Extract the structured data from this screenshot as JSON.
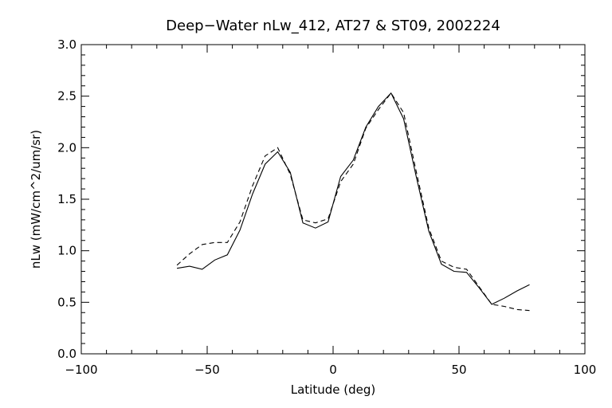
{
  "chart_data": {
    "type": "line",
    "title": "Deep−Water nLw_412, AT27 & ST09, 2002224",
    "xlabel": "Latitude (deg)",
    "ylabel": "nLw (mW/cm^2/um/sr)",
    "xlim": [
      -100,
      100
    ],
    "ylim": [
      0.0,
      3.0
    ],
    "xticks": [
      -100,
      -50,
      0,
      50,
      100
    ],
    "xtick_labels": [
      "−100",
      "−50",
      "0",
      "50",
      "100"
    ],
    "yticks": [
      0.0,
      0.5,
      1.0,
      1.5,
      2.0,
      2.5,
      3.0
    ],
    "ytick_labels": [
      "0.0",
      "0.5",
      "1.0",
      "1.5",
      "2.0",
      "2.5",
      "3.0"
    ],
    "grid": false,
    "series": [
      {
        "style": "solid",
        "x": [
          -62,
          -57,
          -52,
          -47,
          -42,
          -37,
          -32,
          -27,
          -22,
          -17,
          -12,
          -7,
          -2,
          3,
          8,
          13,
          18,
          23,
          28,
          33,
          38,
          43,
          48,
          53,
          58,
          63,
          68,
          73,
          78
        ],
        "y": [
          0.83,
          0.85,
          0.82,
          0.91,
          0.96,
          1.2,
          1.55,
          1.84,
          1.96,
          1.76,
          1.27,
          1.22,
          1.28,
          1.72,
          1.88,
          2.2,
          2.4,
          2.53,
          2.28,
          1.72,
          1.19,
          0.87,
          0.8,
          0.79,
          0.64,
          0.48,
          0.54,
          0.61,
          0.67
        ]
      },
      {
        "style": "dashed",
        "x": [
          -62,
          -57,
          -52,
          -47,
          -42,
          -37,
          -32,
          -27,
          -22,
          -17,
          -12,
          -7,
          -2,
          3,
          8,
          13,
          18,
          23,
          28,
          33,
          38,
          43,
          48,
          53,
          58,
          63,
          68,
          73,
          78
        ],
        "y": [
          0.86,
          0.97,
          1.06,
          1.08,
          1.08,
          1.28,
          1.63,
          1.92,
          2.0,
          1.74,
          1.3,
          1.27,
          1.31,
          1.67,
          1.84,
          2.19,
          2.37,
          2.53,
          2.34,
          1.77,
          1.22,
          0.9,
          0.84,
          0.82,
          0.65,
          0.48,
          0.46,
          0.43,
          0.42
        ]
      }
    ]
  }
}
